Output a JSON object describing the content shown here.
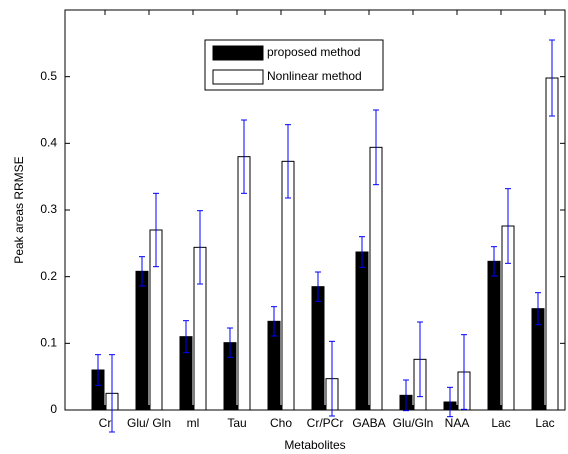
{
  "chart_data": {
    "type": "bar",
    "x_label": "Metabolites",
    "y_label": "Peak areas RRMSE",
    "categories": [
      "Cr",
      "Glu/ Gln",
      "ml",
      "Tau",
      "Cho",
      "Cr/PCr",
      "GABA",
      "Glu/Gln",
      "NAA",
      "Lac",
      "Lac"
    ],
    "series": [
      {
        "name": "proposed method",
        "color": "#000000",
        "values": [
          0.06,
          0.208,
          0.11,
          0.101,
          0.133,
          0.185,
          0.237,
          0.022,
          0.012,
          0.223,
          0.152
        ],
        "errors": [
          0.023,
          0.022,
          0.024,
          0.022,
          0.022,
          0.022,
          0.023,
          0.023,
          0.022,
          0.022,
          0.024
        ]
      },
      {
        "name": "Nonlinear method",
        "color": "#ffffff",
        "values": [
          0.025,
          0.27,
          0.244,
          0.38,
          0.373,
          0.047,
          0.394,
          0.076,
          0.057,
          0.276,
          0.498
        ],
        "errors": [
          0.058,
          0.055,
          0.055,
          0.055,
          0.055,
          0.056,
          0.056,
          0.056,
          0.056,
          0.056,
          0.057
        ]
      }
    ],
    "error_color": "#0000ff",
    "ylim": [
      0,
      0.6
    ],
    "yticks": [
      0,
      0.1,
      0.2,
      0.3,
      0.4,
      0.5
    ],
    "legend": "top"
  }
}
